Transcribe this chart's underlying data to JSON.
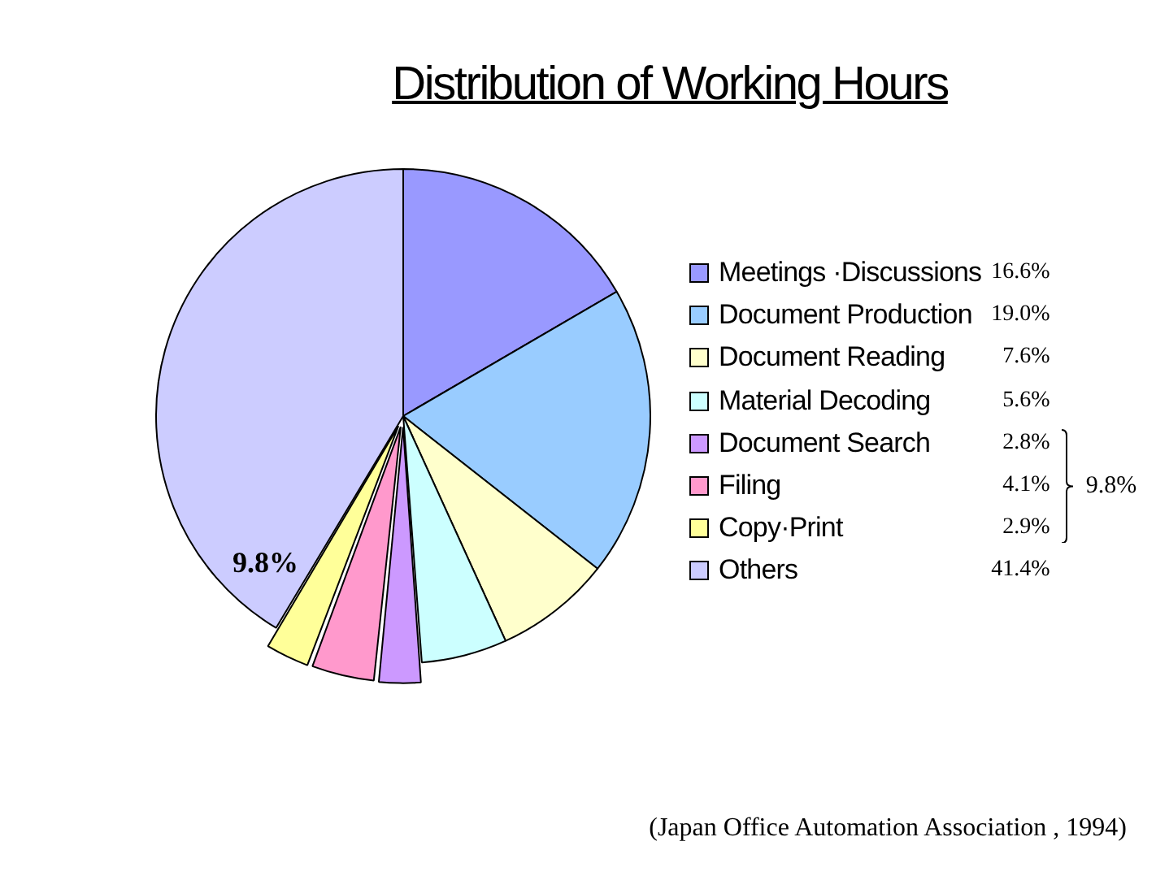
{
  "chart_data": {
    "type": "pie",
    "title": "Distribution of Working Hours",
    "categories": [
      "Meetings ·Discussions",
      "Document Production",
      "Document Reading",
      "Material Decoding",
      "Document Search",
      "Filing",
      "Copy·Print",
      "Others"
    ],
    "values": [
      16.6,
      19.0,
      7.6,
      5.6,
      2.8,
      4.1,
      2.9,
      41.4
    ],
    "colors": [
      "#9999ff",
      "#99ccff",
      "#ffffcc",
      "#ccffff",
      "#cc99ff",
      "#ff99cc",
      "#ffff99",
      "#ccccff"
    ],
    "value_labels": [
      "16.6%",
      "19.0%",
      "7.6%",
      "5.6%",
      "2.8%",
      "4.1%",
      "2.9%",
      "41.4%"
    ],
    "legend": "right",
    "annotations": [
      "9.8%",
      "9.8%",
      "(Japan Office Automation Association , 1994)"
    ]
  }
}
